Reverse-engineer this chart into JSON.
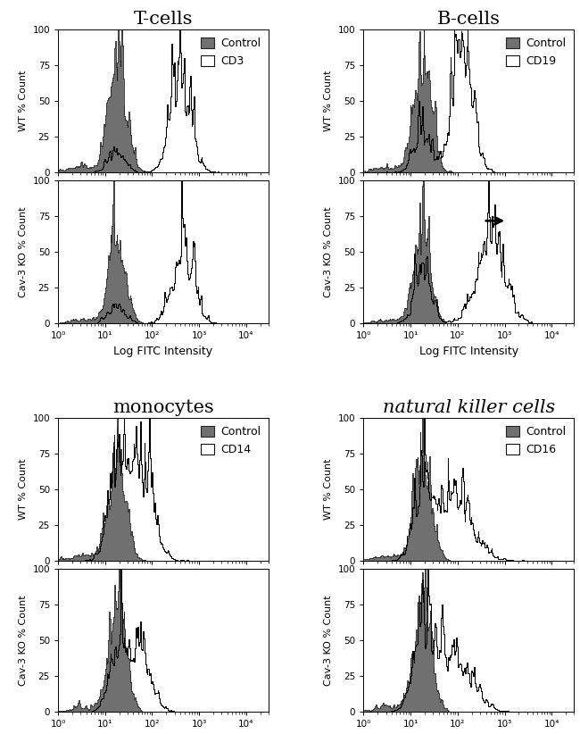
{
  "titles": [
    "T-cells",
    "B-cells",
    "monocytes",
    "natural killer cells"
  ],
  "antibodies": [
    "CD3",
    "CD19",
    "CD14",
    "CD16"
  ],
  "ylabel_wt": "WT % Count",
  "ylabel_ko": "Cav-3 KO % Count",
  "xlabel": "Log FITC Intensity",
  "ylim": [
    0,
    100
  ],
  "yticks": [
    0,
    25,
    50,
    75,
    100
  ],
  "xlim_log": [
    1.0,
    30000.0
  ],
  "xticks_log": [
    1.0,
    10.0,
    100.0,
    1000.0,
    10000.0
  ],
  "xtick_labels": [
    "10⁰",
    "10¹",
    "10²",
    "10³",
    "10⁴"
  ],
  "control_color": "#707070",
  "antibody_color": "#ffffff",
  "control_edge": "#404040",
  "antibody_edge": "#000000",
  "background": "#ffffff",
  "title_fontsize": 15,
  "label_fontsize": 8,
  "tick_fontsize": 7.5,
  "legend_fontsize": 9,
  "legend_handle_size": 12
}
